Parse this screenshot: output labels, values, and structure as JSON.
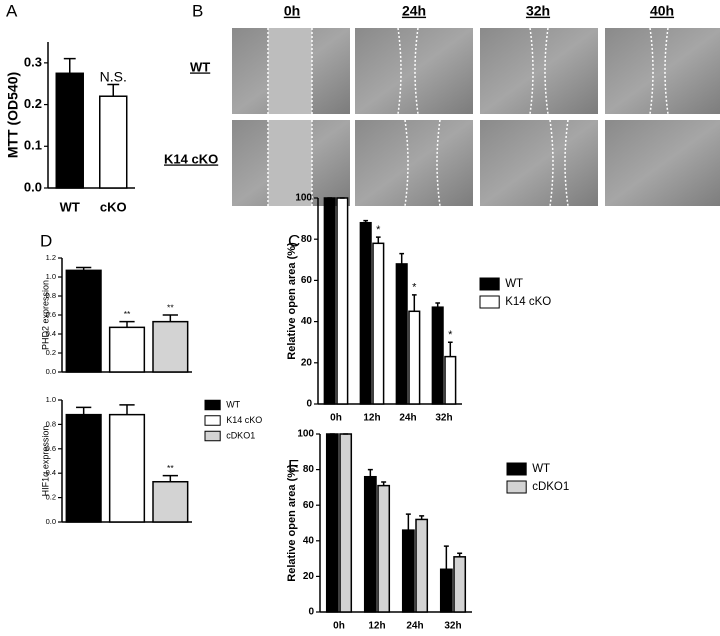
{
  "chart_data": [
    {
      "type": "bar",
      "panel_label": "A",
      "ylabel": "MTT (OD540)",
      "categories": [
        "WT",
        "cKO"
      ],
      "values": [
        0.275,
        0.22
      ],
      "errors": [
        0.035,
        0.028
      ],
      "colors": [
        "#000000",
        "#ffffff"
      ],
      "significance": [
        null,
        "N.S."
      ],
      "ylim": [
        0,
        0.35
      ],
      "yticks": [
        {
          "value": 0,
          "label": "0.0"
        },
        0.1,
        0.2,
        0.3
      ]
    },
    {
      "type": "grouped-bar",
      "panel_label": "C",
      "ylabel": "Relative open area (%)",
      "categories": [
        "0h",
        "12h",
        "24h",
        "32h"
      ],
      "series": [
        {
          "name": "WT",
          "color": "#000000",
          "values": [
            100,
            88,
            68,
            47
          ],
          "errors": [
            0,
            1,
            5,
            2
          ]
        },
        {
          "name": "K14 cKO",
          "color": "#ffffff",
          "values": [
            100,
            78,
            45,
            23
          ],
          "errors": [
            0,
            3,
            8,
            7
          ],
          "significance": [
            null,
            "*",
            "*",
            "*"
          ]
        }
      ],
      "ylim": [
        0,
        100
      ],
      "yticks": [
        0,
        20,
        40,
        60,
        80,
        100
      ]
    },
    {
      "type": "bar",
      "panel_label": "D",
      "ylabel": "PHD2 expression",
      "categories": [
        null,
        null,
        null
      ],
      "values": [
        1.07,
        0.47,
        0.53
      ],
      "errors": [
        0.03,
        0.06,
        0.07
      ],
      "colors": [
        "#000000",
        "#ffffff",
        "#d3d3d3"
      ],
      "significance": [
        null,
        "**",
        "**"
      ],
      "ylim": [
        0,
        1.2
      ],
      "yticks": [
        {
          "value": 0,
          "label": "0.0"
        },
        0.2,
        0.4,
        0.6,
        0.8,
        {
          "value": 1,
          "label": "1.0"
        },
        1.2
      ]
    },
    {
      "type": "bar",
      "ylabel": "HIF1α expression",
      "categories": [
        null,
        null,
        null
      ],
      "values": [
        0.88,
        0.88,
        0.33
      ],
      "errors": [
        0.06,
        0.08,
        0.05
      ],
      "colors": [
        "#000000",
        "#ffffff",
        "#d3d3d3"
      ],
      "significance": [
        null,
        null,
        "**"
      ],
      "legend": [
        "WT",
        "K14 cKO",
        "cDKO1"
      ],
      "ylim": [
        0,
        1
      ],
      "yticks": [
        {
          "value": 0,
          "label": "0.0"
        },
        0.2,
        0.4,
        0.6,
        0.8,
        {
          "value": 1,
          "label": "1.0"
        }
      ]
    },
    {
      "type": "grouped-bar",
      "panel_label": "E",
      "ylabel": "Relative open area (%)",
      "categories": [
        "0h",
        "12h",
        "24h",
        "32h"
      ],
      "series": [
        {
          "name": "WT",
          "color": "#000000",
          "values": [
            100,
            76,
            46,
            24
          ],
          "errors": [
            0,
            4,
            9,
            13
          ]
        },
        {
          "name": "cDKO1",
          "color": "#d3d3d3",
          "values": [
            100,
            71,
            52,
            31
          ],
          "errors": [
            0,
            2,
            2,
            2
          ]
        }
      ],
      "ylim": [
        0,
        100
      ],
      "yticks": [
        0,
        20,
        40,
        60,
        80,
        100
      ]
    }
  ],
  "panel_b": {
    "label": "B",
    "columns": [
      "0h",
      "24h",
      "32h",
      "40h"
    ],
    "rows": [
      "WT",
      "K14 cKO"
    ]
  }
}
